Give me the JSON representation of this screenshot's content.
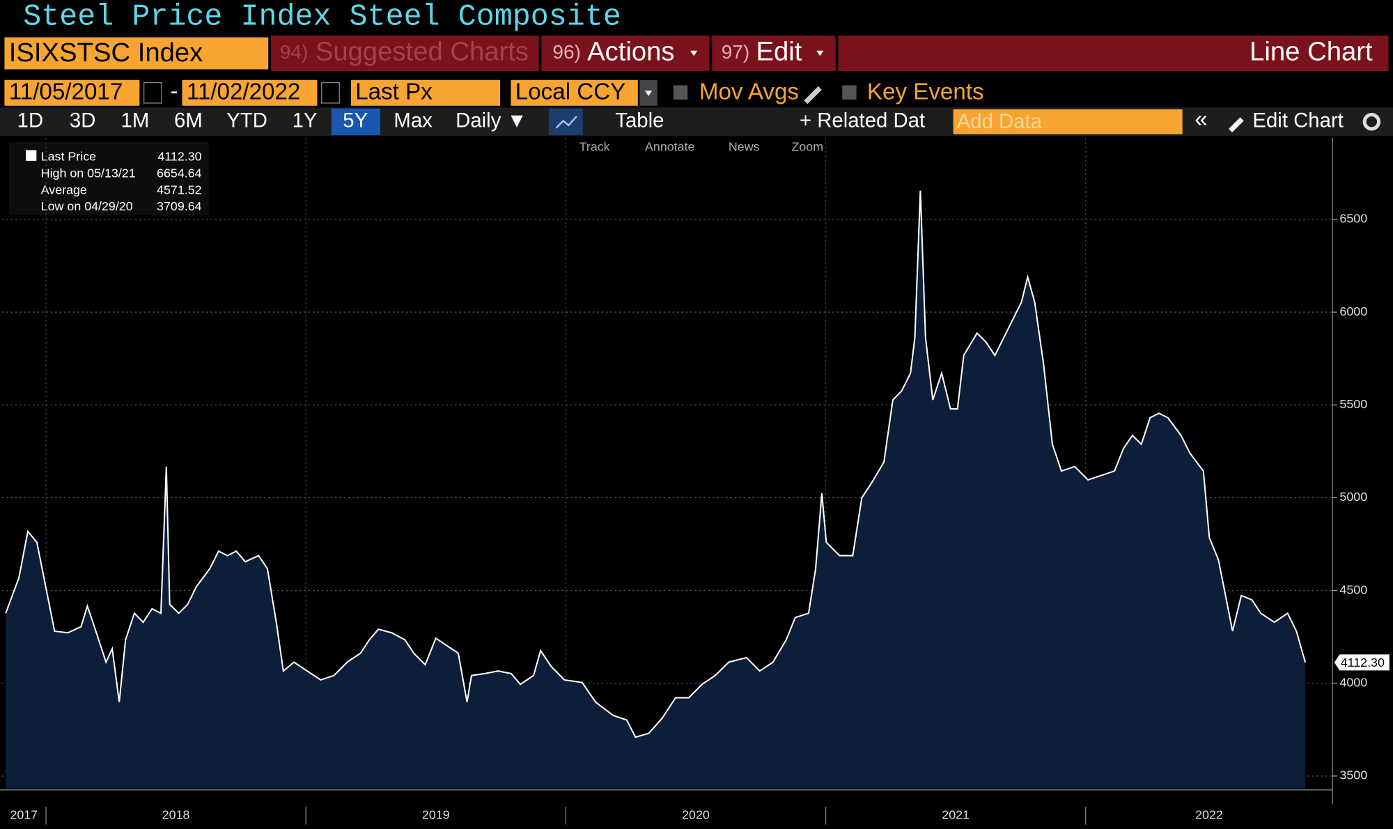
{
  "title": "Steel Price Index Steel Composite",
  "ticker_bar": {
    "ticker": "ISIXSTSC Index",
    "suggested": {
      "num": "94)",
      "label": "Suggested Charts"
    },
    "actions": {
      "num": "96)",
      "label": "Actions"
    },
    "edit": {
      "num": "97)",
      "label": "Edit"
    },
    "chart_kind": "Line Chart"
  },
  "controls": {
    "start_date": "11/05/2017",
    "end_date": "11/02/2022",
    "field": "Last Px",
    "currency": "Local CCY",
    "mov_avgs": "Mov Avgs",
    "key_events": "Key Events"
  },
  "toolbar": {
    "periods": [
      "1D",
      "3D",
      "1M",
      "6M",
      "YTD",
      "1Y",
      "5Y",
      "Max"
    ],
    "frequency": "Daily ▼",
    "table": "Table",
    "related": "+ Related Dat",
    "add_data": "Add Data",
    "edit_chart": "Edit Chart"
  },
  "tools": [
    "Track",
    "Annotate",
    "News",
    "Zoom"
  ],
  "legend": {
    "last_value": "4112.30",
    "stats": [
      {
        "label": "High on 05/13/21",
        "value": "6654.64"
      },
      {
        "label": "Average",
        "value": "4571.52"
      },
      {
        "label": "Low on 04/29/20",
        "value": "3709.64"
      }
    ]
  },
  "chart_data": {
    "type": "line",
    "x": [
      2017.845,
      2017.896,
      2017.93,
      2017.965,
      2017.999,
      2018.033,
      2018.084,
      2018.135,
      2018.159,
      2018.186,
      2018.231,
      2018.255,
      2018.282,
      2018.306,
      2018.34,
      2018.374,
      2018.408,
      2018.442,
      2018.463,
      2018.476,
      2018.511,
      2018.545,
      2018.579,
      2018.63,
      2018.664,
      2018.698,
      2018.732,
      2018.767,
      2018.818,
      2018.852,
      2018.886,
      2018.913,
      2018.954,
      2019.005,
      2019.057,
      2019.108,
      2019.159,
      2019.21,
      2019.244,
      2019.279,
      2019.33,
      2019.381,
      2019.415,
      2019.459,
      2019.5,
      2019.534,
      2019.586,
      2019.62,
      2019.637,
      2019.688,
      2019.739,
      2019.79,
      2019.825,
      2019.876,
      2019.903,
      2019.944,
      2019.995,
      2020.063,
      2020.115,
      2020.183,
      2020.234,
      2020.268,
      2020.319,
      2020.371,
      2020.422,
      2020.473,
      2020.524,
      2020.575,
      2020.627,
      2020.695,
      2020.746,
      2020.797,
      2020.848,
      2020.883,
      2020.934,
      2020.961,
      2020.985,
      2021.002,
      2021.053,
      2021.104,
      2021.139,
      2021.173,
      2021.224,
      2021.258,
      2021.292,
      2021.326,
      2021.343,
      2021.364,
      2021.384,
      2021.412,
      2021.446,
      2021.48,
      2021.507,
      2021.531,
      2021.582,
      2021.616,
      2021.651,
      2021.702,
      2021.753,
      2021.777,
      2021.804,
      2021.838,
      2021.872,
      2021.907,
      2021.958,
      2022.009,
      2022.06,
      2022.111,
      2022.145,
      2022.18,
      2022.214,
      2022.248,
      2022.282,
      2022.316,
      2022.367,
      2022.401,
      2022.453,
      2022.476,
      2022.511,
      2022.538,
      2022.565,
      2022.599,
      2022.64,
      2022.674,
      2022.726,
      2022.777,
      2022.811,
      2022.845
    ],
    "series": [
      {
        "name": "Last Price",
        "color": "#ffffff",
        "fill": "#0c1e3a",
        "values": [
          4377,
          4569,
          4818,
          4760,
          4521,
          4281,
          4272,
          4305,
          4416,
          4305,
          4114,
          4186,
          3898,
          4234,
          4377,
          4329,
          4401,
          4377,
          5168,
          4425,
          4377,
          4425,
          4521,
          4617,
          4712,
          4688,
          4712,
          4655,
          4688,
          4617,
          4329,
          4066,
          4114,
          4066,
          4018,
          4042,
          4114,
          4162,
          4234,
          4291,
          4272,
          4234,
          4162,
          4100,
          4243,
          4210,
          4162,
          3898,
          4042,
          4052,
          4066,
          4052,
          3994,
          4042,
          4176,
          4090,
          4018,
          4004,
          3898,
          3826,
          3802,
          3709.64,
          3730,
          3812,
          3922,
          3922,
          3994,
          4042,
          4114,
          4138,
          4066,
          4114,
          4234,
          4354,
          4377,
          4617,
          5024,
          4760,
          4688,
          4688,
          5000,
          5072,
          5192,
          5527,
          5575,
          5671,
          5863,
          6654.64,
          5863,
          5527,
          5671,
          5479,
          5479,
          5767,
          5887,
          5839,
          5767,
          5911,
          6054,
          6189,
          6054,
          5719,
          5288,
          5144,
          5168,
          5096,
          5120,
          5144,
          5264,
          5336,
          5288,
          5431,
          5455,
          5431,
          5336,
          5240,
          5144,
          4784,
          4664,
          4473,
          4281,
          4473,
          4449,
          4377,
          4329,
          4377,
          4281,
          4112.3
        ]
      }
    ],
    "xlim": [
      2017.83,
      2022.95
    ],
    "xticks": [
      2017,
      2018,
      2019,
      2020,
      2021,
      2022
    ],
    "ylim": [
      3430,
      6940
    ],
    "yticks": [
      3500,
      4000,
      4500,
      5000,
      5500,
      6000,
      6500
    ],
    "grid": true
  }
}
